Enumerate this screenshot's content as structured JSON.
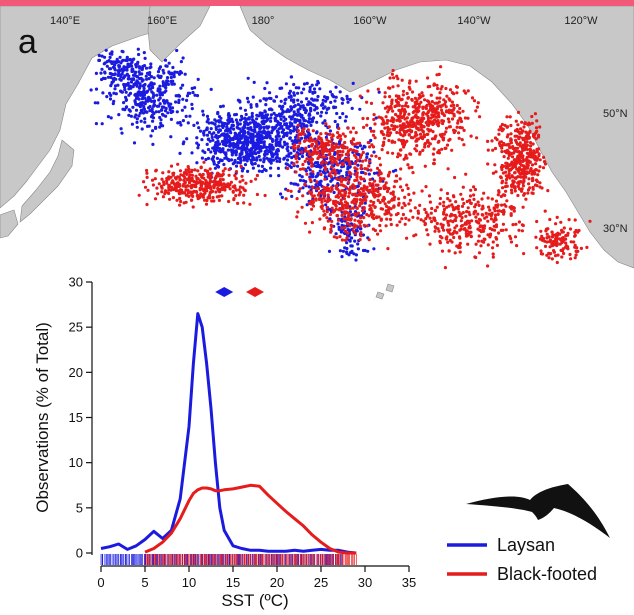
{
  "panel_label": "a",
  "colors": {
    "laysan": "#1b1be0",
    "black_footed": "#e61b1b",
    "land": "#c8c8c8",
    "ocean": "#ffffff",
    "top_bar": "#f05a78"
  },
  "map": {
    "longitude_labels": [
      "140°E",
      "160°E",
      "180°",
      "160°W",
      "140°W",
      "120°W"
    ],
    "latitude_labels": [
      "50°N",
      "30°N"
    ]
  },
  "inset": {
    "marker_icons": [
      "laysan-diamond-icon",
      "black-footed-diamond-icon"
    ],
    "silhouette_icon": "albatross-silhouette-icon"
  },
  "chart_data": {
    "type": "line",
    "title": "",
    "xlabel": "SST (ºC)",
    "ylabel": "Observations (% of Total)",
    "xlim": [
      0,
      35
    ],
    "ylim": [
      0,
      30
    ],
    "xticks": [
      0,
      5,
      10,
      15,
      20,
      25,
      30,
      35
    ],
    "yticks": [
      0,
      5,
      10,
      15,
      20,
      25,
      30
    ],
    "grid": false,
    "legend_position": "bottom-right",
    "x": [
      0,
      1,
      2,
      3,
      4,
      5,
      6,
      7,
      8,
      9,
      10,
      10.5,
      11,
      11.5,
      12,
      12.5,
      13,
      13.5,
      14,
      15,
      16,
      17,
      18,
      19,
      20,
      21,
      22,
      23,
      24,
      25,
      26,
      27,
      28,
      29
    ],
    "series": [
      {
        "name": "Laysan",
        "color": "#1b1be0",
        "mean_sst": 14,
        "values": [
          0.5,
          0.7,
          1.0,
          0.4,
          0.8,
          1.5,
          2.4,
          1.6,
          2.5,
          6.0,
          14.0,
          21.0,
          26.5,
          25.0,
          21.0,
          16.0,
          10.0,
          5.0,
          2.5,
          0.8,
          0.5,
          0.3,
          0.3,
          0.2,
          0.2,
          0.2,
          0.3,
          0.2,
          0.3,
          0.4,
          0.3,
          0.3,
          0.1,
          0.0
        ]
      },
      {
        "name": "Black-footed",
        "color": "#e61b1b",
        "mean_sst": 17.5,
        "values": [
          null,
          null,
          null,
          null,
          null,
          0.1,
          0.5,
          1.2,
          2.2,
          3.8,
          5.8,
          6.6,
          7.0,
          7.2,
          7.2,
          7.1,
          6.9,
          6.9,
          7.0,
          7.1,
          7.3,
          7.5,
          7.4,
          6.4,
          5.5,
          4.6,
          3.8,
          3.0,
          2.0,
          1.2,
          0.5,
          0.1,
          0.0,
          0.0
        ]
      }
    ]
  }
}
